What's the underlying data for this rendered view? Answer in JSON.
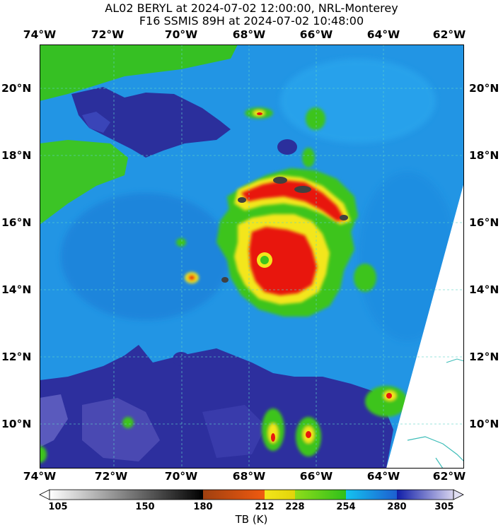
{
  "title_line1": "AL02 BERYL at 2024-07-02 12:00:00, NRL-Monterey",
  "title_line2": "F16 SSMIS 89H at 2024-07-02 10:48:00",
  "lon_labels": [
    "74°W",
    "72°W",
    "70°W",
    "68°W",
    "66°W",
    "64°W",
    "62°W"
  ],
  "lat_labels": [
    "20°N",
    "18°N",
    "16°N",
    "14°N",
    "12°N",
    "10°N"
  ],
  "colorbar": {
    "label": "TB (K)",
    "ticks": [
      "105",
      "150",
      "180",
      "212",
      "228",
      "254",
      "280",
      "305"
    ],
    "colors": {
      "very_cold": "#404040",
      "cold_red": "#e8170f",
      "yellow": "#f3e61b",
      "green": "#3fc61c",
      "light_blue": "#1da3e8",
      "blue": "#1d6bd4",
      "dark_blue": "#2d2f9e",
      "purple": "#5a4db0"
    }
  }
}
